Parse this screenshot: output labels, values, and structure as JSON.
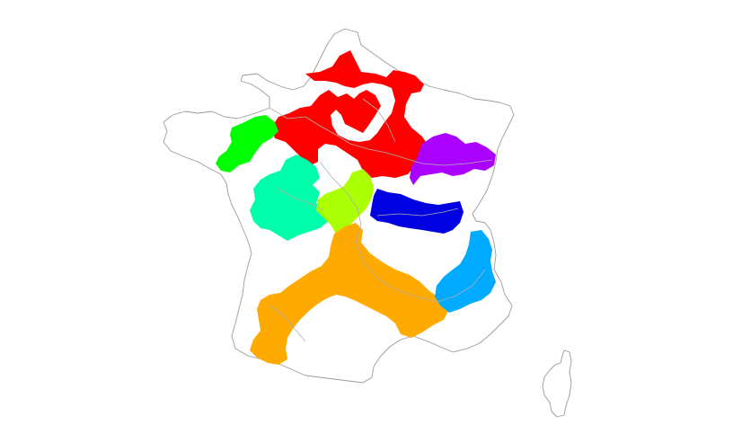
{
  "map": {
    "subject": "France",
    "background": "#ffffff",
    "border_color": "#9a9a9a",
    "regions": [
      {
        "id": "north",
        "color": "#ff0000"
      },
      {
        "id": "brittany",
        "color": "#00ff00"
      },
      {
        "id": "loire-west",
        "color": "#00ffaa"
      },
      {
        "id": "center",
        "color": "#aaff00"
      },
      {
        "id": "east",
        "color": "#aa00ff"
      },
      {
        "id": "burgundy",
        "color": "#0000e0"
      },
      {
        "id": "south",
        "color": "#ffaa00"
      },
      {
        "id": "alps",
        "color": "#00aaff"
      }
    ]
  }
}
